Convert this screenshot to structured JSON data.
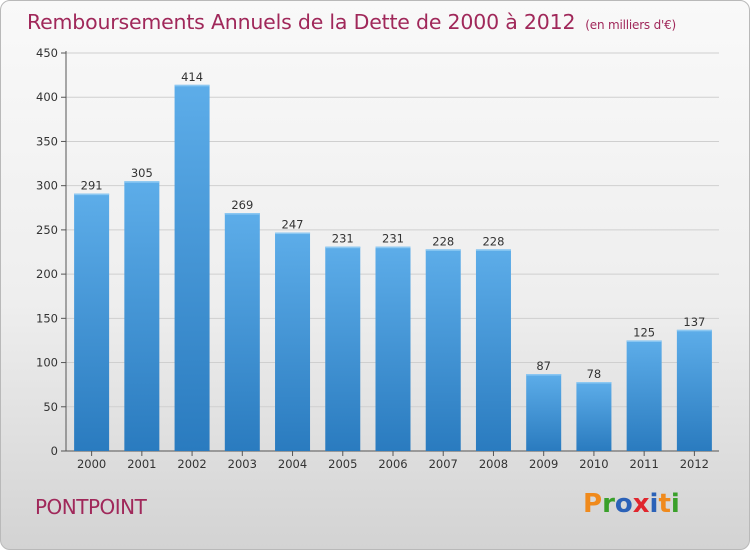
{
  "header": {
    "title": "Remboursements Annuels de la Dette de 2000 à 2012",
    "subtitle": "(en milliers d'€)"
  },
  "footer": {
    "commune": "PONTPOINT",
    "logo_text": "Proxiti",
    "logo_colors": [
      "#f08a1c",
      "#3aa02a",
      "#2b62b8",
      "#e0262e",
      "#2b62b8",
      "#f08a1c",
      "#3aa02a"
    ]
  },
  "colors": {
    "bar_top": "#5dade9",
    "bar_bottom": "#2a7bbf",
    "grid": "#cfcfcf",
    "axis": "#555555",
    "text": "#333333"
  },
  "chart_data": {
    "type": "bar",
    "categories": [
      "2000",
      "2001",
      "2002",
      "2003",
      "2004",
      "2005",
      "2006",
      "2007",
      "2008",
      "2009",
      "2010",
      "2011",
      "2012"
    ],
    "values": [
      291,
      305,
      414,
      269,
      247,
      231,
      231,
      228,
      228,
      87,
      78,
      125,
      137
    ],
    "data_labels": [
      "291",
      "305",
      "414",
      "269",
      "247",
      "231",
      "231",
      "228",
      "228",
      "87",
      "78",
      "125",
      "137"
    ],
    "ylim": [
      0,
      450
    ],
    "yticks": [
      0,
      50,
      100,
      150,
      200,
      250,
      300,
      350,
      400,
      450
    ],
    "ytick_labels": [
      "0",
      "50",
      "100",
      "150",
      "200",
      "250",
      "300",
      "350",
      "400",
      "450"
    ],
    "grid": true,
    "legend": "none"
  }
}
